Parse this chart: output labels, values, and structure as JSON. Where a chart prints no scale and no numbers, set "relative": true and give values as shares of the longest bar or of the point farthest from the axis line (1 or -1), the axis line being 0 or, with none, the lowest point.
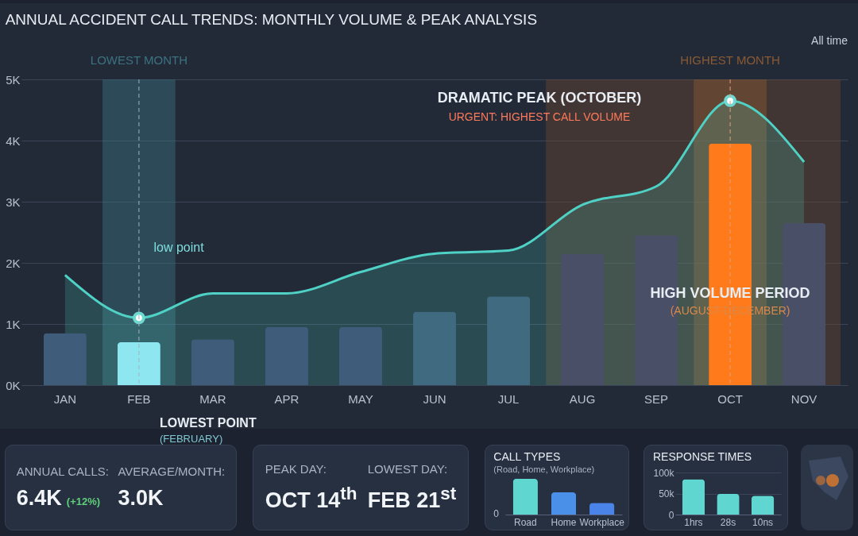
{
  "chart_data": [
    {
      "type": "bar",
      "title": "ANNUAL ACCIDENT CALL TRENDS: MONTHLY VOLUME & PEAK ANALYSIS",
      "categories": [
        "JAN",
        "FEB",
        "MAR",
        "APR",
        "MAY",
        "JUN",
        "JUL",
        "AUG",
        "SEP",
        "OCT",
        "NOV"
      ],
      "series": [
        {
          "type": "area",
          "color": "#4fd1c5",
          "values": [
            1.8,
            1.1,
            1.5,
            1.5,
            1.85,
            2.15,
            2.2,
            2.95,
            3.25,
            4.65,
            3.65
          ]
        },
        {
          "type": "bar",
          "colors": [
            "#3f5d7a",
            "#8ee6f0",
            "#3f5d7a",
            "#3f5d7a",
            "#3f5d7a",
            "#3f6a80",
            "#3f6a80",
            "#4a4f68",
            "#4a4f68",
            "#ff7a1a",
            "#4a4f68"
          ],
          "values": [
            0.85,
            0.7,
            0.75,
            0.95,
            0.95,
            1.2,
            1.45,
            2.15,
            2.45,
            3.95,
            2.65
          ]
        },
        {
          "type": "scatter",
          "color": "#ffffff",
          "marker": "circle",
          "x": [
            "FEB",
            "OCT"
          ],
          "values": [
            1.1,
            4.65
          ]
        }
      ],
      "ylim": [
        0,
        5
      ],
      "yticks": [
        {
          "value": 0,
          "label": "0K"
        },
        {
          "value": 1,
          "label": "1K"
        },
        {
          "value": 2,
          "label": "2K"
        },
        {
          "value": 3,
          "label": "3K"
        },
        {
          "value": 4,
          "label": "4K"
        },
        {
          "value": 5,
          "label": "5K"
        }
      ],
      "grid": "y",
      "bands": [
        {
          "axis": "x",
          "from": "FEB",
          "to": "FEB",
          "label": "LOWEST MONTH",
          "color": "#3b7280"
        },
        {
          "axis": "x",
          "from": "AUG",
          "to": "NOV",
          "color": "#6b4430"
        },
        {
          "axis": "x",
          "from": "OCT",
          "to": "OCT",
          "label": "HIGHEST MONTH",
          "color": "#8a5a33"
        }
      ],
      "ref_lines": [
        {
          "axis": "x",
          "value": "FEB",
          "line_style": "dashed",
          "color": "#9fb4c0"
        },
        {
          "axis": "x",
          "value": "OCT",
          "line_style": "dashed",
          "color": "#e0a080"
        }
      ],
      "annotations": [
        "low point",
        {
          "text": "LOWEST POINT",
          "x": "FEB",
          "y": 0
        },
        "(FEBRUARY)",
        "DRAMATIC PEAK (OCTOBER)",
        "URGENT: HIGHEST CALL VOLUME",
        {
          "text": "HIGH VOLUME PERIOD",
          "x": "OCT",
          "y": 1.5
        },
        {
          "text": "(AUGUST-DECEMBER)",
          "x": "OCT",
          "y": 1.5
        },
        "All time"
      ]
    },
    {
      "type": "other",
      "annotations": [
        "ANNUAL CALLS:",
        "6.4K",
        "(+12%)",
        "AVERAGE/MONTH:",
        "3.0K"
      ]
    },
    {
      "type": "other",
      "annotations": [
        "PEAK DAY:",
        "OCT 14$^{th}$",
        "LOWEST DAY:",
        "FEB 21$^{st}$"
      ]
    },
    {
      "type": "bar",
      "title": "CALL TYPES",
      "subtitle": "(Road, Home, Workplace)",
      "categories": [
        "Road",
        "Home",
        "Workplace"
      ],
      "values": [
        1,
        0.62,
        0.33
      ],
      "colors": [
        "#5fd6d0",
        "#4a90e8",
        "#4a84e8"
      ],
      "relative": true,
      "annotations": [
        "0"
      ]
    },
    {
      "type": "bar",
      "title": "RESPONSE TIMES",
      "categories": [
        "1hrs",
        "28s",
        "10ns"
      ],
      "values": [
        84000,
        49000,
        45000
      ],
      "colors": [
        "#5fd6d0",
        "#5fd6d0",
        "#5fd6d0"
      ],
      "ylim": [
        0,
        100000
      ],
      "yticks": [
        0,
        {
          "value": 50000,
          "label": "50k"
        },
        {
          "value": 100000,
          "label": "100k"
        }
      ],
      "grid": "y"
    }
  ]
}
